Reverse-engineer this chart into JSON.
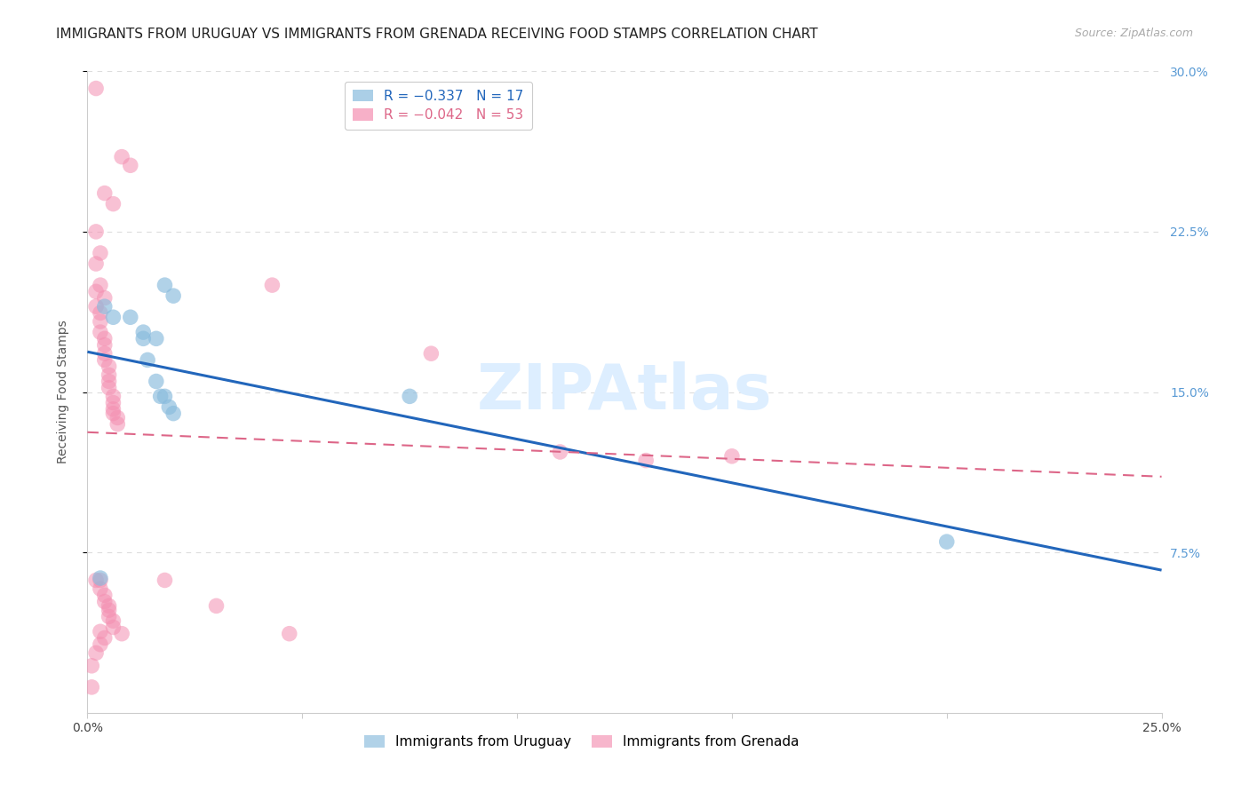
{
  "title": "IMMIGRANTS FROM URUGUAY VS IMMIGRANTS FROM GRENADA RECEIVING FOOD STAMPS CORRELATION CHART",
  "source": "Source: ZipAtlas.com",
  "ylabel": "Receiving Food Stamps",
  "xlim": [
    0.0,
    0.25
  ],
  "ylim": [
    0.0,
    0.3
  ],
  "ytick_labels": [
    "7.5%",
    "15.0%",
    "22.5%",
    "30.0%"
  ],
  "ytick_positions": [
    0.075,
    0.15,
    0.225,
    0.3
  ],
  "xtick_positions": [
    0.0,
    0.05,
    0.1,
    0.15,
    0.2,
    0.25
  ],
  "xtick_labels": [
    "0.0%",
    "",
    "",
    "",
    "",
    "25.0%"
  ],
  "uruguay_color": "#88bbdd",
  "grenada_color": "#f48fb1",
  "uruguay_line_color": "#2266bb",
  "grenada_line_color": "#dd6688",
  "uruguay_scatter": [
    [
      0.004,
      0.19
    ],
    [
      0.006,
      0.185
    ],
    [
      0.01,
      0.185
    ],
    [
      0.013,
      0.178
    ],
    [
      0.016,
      0.175
    ],
    [
      0.018,
      0.2
    ],
    [
      0.02,
      0.195
    ],
    [
      0.013,
      0.175
    ],
    [
      0.014,
      0.165
    ],
    [
      0.016,
      0.155
    ],
    [
      0.017,
      0.148
    ],
    [
      0.018,
      0.148
    ],
    [
      0.019,
      0.143
    ],
    [
      0.02,
      0.14
    ],
    [
      0.075,
      0.148
    ],
    [
      0.2,
      0.08
    ],
    [
      0.003,
      0.063
    ]
  ],
  "grenada_scatter": [
    [
      0.002,
      0.292
    ],
    [
      0.008,
      0.26
    ],
    [
      0.01,
      0.256
    ],
    [
      0.004,
      0.243
    ],
    [
      0.006,
      0.238
    ],
    [
      0.002,
      0.225
    ],
    [
      0.003,
      0.215
    ],
    [
      0.002,
      0.21
    ],
    [
      0.003,
      0.2
    ],
    [
      0.002,
      0.197
    ],
    [
      0.004,
      0.194
    ],
    [
      0.002,
      0.19
    ],
    [
      0.003,
      0.187
    ],
    [
      0.003,
      0.183
    ],
    [
      0.003,
      0.178
    ],
    [
      0.004,
      0.175
    ],
    [
      0.004,
      0.172
    ],
    [
      0.004,
      0.168
    ],
    [
      0.004,
      0.165
    ],
    [
      0.005,
      0.162
    ],
    [
      0.005,
      0.158
    ],
    [
      0.005,
      0.155
    ],
    [
      0.005,
      0.152
    ],
    [
      0.006,
      0.148
    ],
    [
      0.006,
      0.145
    ],
    [
      0.006,
      0.142
    ],
    [
      0.006,
      0.14
    ],
    [
      0.007,
      0.138
    ],
    [
      0.007,
      0.135
    ],
    [
      0.043,
      0.2
    ],
    [
      0.08,
      0.168
    ],
    [
      0.11,
      0.122
    ],
    [
      0.13,
      0.118
    ],
    [
      0.002,
      0.062
    ],
    [
      0.003,
      0.062
    ],
    [
      0.003,
      0.058
    ],
    [
      0.004,
      0.055
    ],
    [
      0.004,
      0.052
    ],
    [
      0.005,
      0.05
    ],
    [
      0.005,
      0.048
    ],
    [
      0.005,
      0.045
    ],
    [
      0.006,
      0.043
    ],
    [
      0.006,
      0.04
    ],
    [
      0.003,
      0.038
    ],
    [
      0.004,
      0.035
    ],
    [
      0.003,
      0.032
    ],
    [
      0.002,
      0.028
    ],
    [
      0.047,
      0.037
    ],
    [
      0.03,
      0.05
    ],
    [
      0.018,
      0.062
    ],
    [
      0.008,
      0.037
    ],
    [
      0.15,
      0.12
    ],
    [
      0.001,
      0.022
    ],
    [
      0.001,
      0.012
    ]
  ],
  "watermark_text": "ZIPAtlas",
  "watermark_color": "#ddeeff",
  "title_fontsize": 11,
  "source_fontsize": 9,
  "axis_label_fontsize": 10,
  "tick_fontsize": 10,
  "legend_fontsize": 11,
  "background_color": "#ffffff",
  "grid_color": "#dddddd",
  "right_tick_color": "#5b9bd5"
}
